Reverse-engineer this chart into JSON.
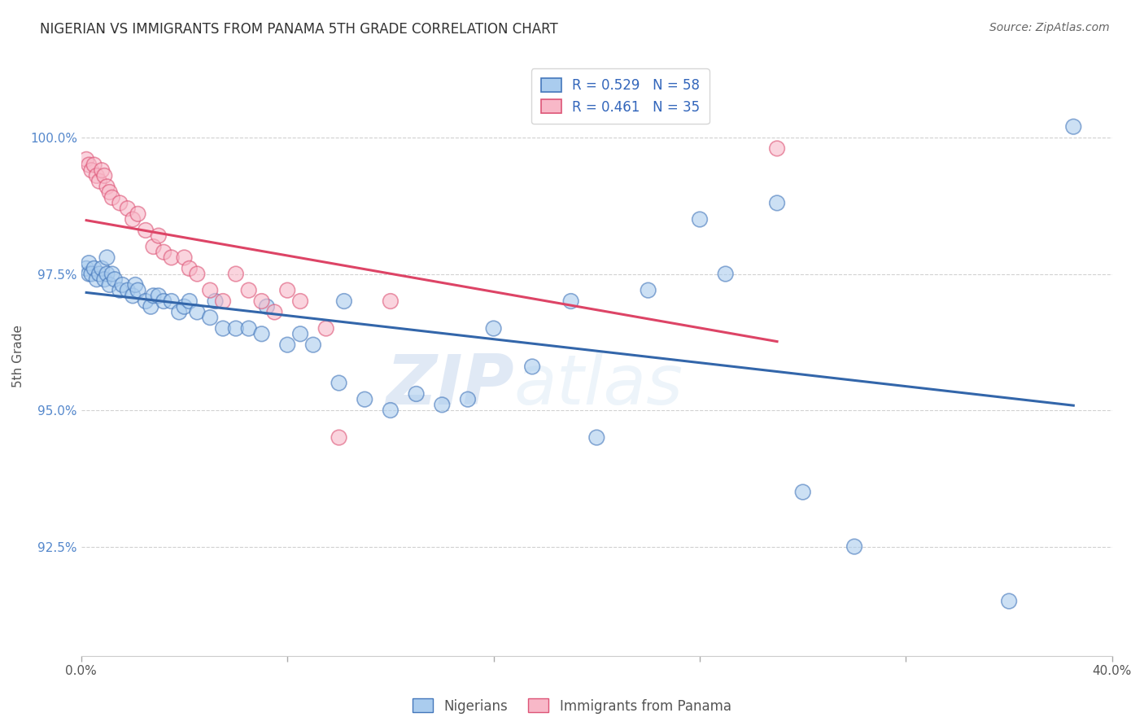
{
  "title": "NIGERIAN VS IMMIGRANTS FROM PANAMA 5TH GRADE CORRELATION CHART",
  "source": "Source: ZipAtlas.com",
  "ylabel": "5th Grade",
  "xlim": [
    0.0,
    40.0
  ],
  "ylim": [
    90.5,
    101.5
  ],
  "yticks": [
    92.5,
    95.0,
    97.5,
    100.0
  ],
  "ytick_labels": [
    "92.5%",
    "95.0%",
    "97.5%",
    "100.0%"
  ],
  "xticks": [
    0.0,
    8.0,
    16.0,
    24.0,
    32.0,
    40.0
  ],
  "blue_label": "Nigerians",
  "pink_label": "Immigrants from Panama",
  "blue_face_color": "#aaccee",
  "pink_face_color": "#f8b8c8",
  "blue_edge_color": "#4477bb",
  "pink_edge_color": "#dd5577",
  "blue_line_color": "#3366aa",
  "pink_line_color": "#dd4466",
  "watermark_zip": "ZIP",
  "watermark_atlas": "atlas",
  "background_color": "#ffffff",
  "grid_color": "#cccccc",
  "blue_points_x": [
    0.2,
    0.3,
    0.3,
    0.4,
    0.5,
    0.6,
    0.7,
    0.8,
    0.9,
    1.0,
    1.0,
    1.1,
    1.2,
    1.3,
    1.5,
    1.6,
    1.8,
    2.0,
    2.1,
    2.2,
    2.5,
    2.7,
    2.8,
    3.0,
    3.2,
    3.5,
    3.8,
    4.0,
    4.2,
    4.5,
    5.0,
    5.2,
    5.5,
    6.0,
    6.5,
    7.0,
    7.2,
    8.0,
    8.5,
    9.0,
    10.0,
    10.2,
    11.0,
    12.0,
    13.0,
    14.0,
    15.0,
    16.0,
    17.5,
    19.0,
    20.0,
    22.0,
    24.0,
    25.0,
    27.0,
    28.0,
    30.0,
    38.5,
    36.0
  ],
  "blue_points_y": [
    97.6,
    97.5,
    97.7,
    97.5,
    97.6,
    97.4,
    97.5,
    97.6,
    97.4,
    97.8,
    97.5,
    97.3,
    97.5,
    97.4,
    97.2,
    97.3,
    97.2,
    97.1,
    97.3,
    97.2,
    97.0,
    96.9,
    97.1,
    97.1,
    97.0,
    97.0,
    96.8,
    96.9,
    97.0,
    96.8,
    96.7,
    97.0,
    96.5,
    96.5,
    96.5,
    96.4,
    96.9,
    96.2,
    96.4,
    96.2,
    95.5,
    97.0,
    95.2,
    95.0,
    95.3,
    95.1,
    95.2,
    96.5,
    95.8,
    97.0,
    94.5,
    97.2,
    98.5,
    97.5,
    98.8,
    93.5,
    92.5,
    100.2,
    91.5
  ],
  "pink_points_x": [
    0.2,
    0.3,
    0.4,
    0.5,
    0.6,
    0.7,
    0.8,
    0.9,
    1.0,
    1.1,
    1.2,
    1.5,
    1.8,
    2.0,
    2.2,
    2.5,
    2.8,
    3.0,
    3.2,
    3.5,
    4.0,
    4.2,
    4.5,
    5.0,
    5.5,
    6.0,
    6.5,
    7.0,
    7.5,
    8.0,
    8.5,
    9.5,
    10.0,
    12.0,
    27.0
  ],
  "pink_points_y": [
    99.6,
    99.5,
    99.4,
    99.5,
    99.3,
    99.2,
    99.4,
    99.3,
    99.1,
    99.0,
    98.9,
    98.8,
    98.7,
    98.5,
    98.6,
    98.3,
    98.0,
    98.2,
    97.9,
    97.8,
    97.8,
    97.6,
    97.5,
    97.2,
    97.0,
    97.5,
    97.2,
    97.0,
    96.8,
    97.2,
    97.0,
    96.5,
    94.5,
    97.0,
    99.8
  ]
}
